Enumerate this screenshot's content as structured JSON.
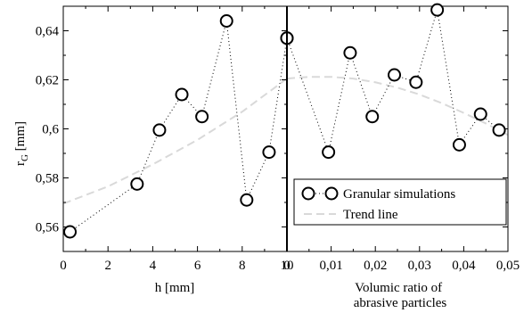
{
  "chart_data": [
    {
      "type": "scatter",
      "xlabel": "h [mm]",
      "ylabel_main": "r",
      "ylabel_sub": "G",
      "ylabel_unit": " [mm]",
      "xlim": [
        0,
        10
      ],
      "ylim": [
        0.55,
        0.65
      ],
      "xticks": [
        0,
        2,
        4,
        6,
        8,
        10
      ],
      "xtick_labels": [
        "0",
        "2",
        "4",
        "6",
        "8",
        "10"
      ],
      "yticks": [
        0.56,
        0.58,
        0.6,
        0.62,
        0.64
      ],
      "ytick_labels": [
        "0,56",
        "0,58",
        "0,6",
        "0,62",
        "0,64"
      ],
      "series": [
        {
          "name": "Granular simulations",
          "style": "dotted-line-with-circles",
          "x": [
            0.3,
            3.3,
            4.3,
            5.3,
            6.2,
            7.3,
            8.2,
            9.2,
            10.0
          ],
          "y": [
            0.558,
            0.5775,
            0.5995,
            0.614,
            0.605,
            0.644,
            0.571,
            0.5905,
            0.637
          ]
        },
        {
          "name": "Trend line",
          "style": "dashed",
          "x": [
            0,
            2,
            4,
            6,
            8,
            10
          ],
          "y": [
            0.5695,
            0.5765,
            0.5855,
            0.5955,
            0.607,
            0.6205
          ]
        }
      ]
    },
    {
      "type": "scatter",
      "xlabel_lines": [
        "Volumic ratio of",
        "abrasive particles"
      ],
      "xlim": [
        0,
        0.05
      ],
      "ylim": [
        0.55,
        0.65
      ],
      "xticks": [
        0,
        0.01,
        0.02,
        0.03,
        0.04,
        0.05
      ],
      "xtick_labels": [
        "0",
        "0,01",
        "0,02",
        "0,03",
        "0,04",
        "0,05"
      ],
      "legend": {
        "placement": "lower-right",
        "entries": [
          "Granular simulations",
          "Trend line"
        ]
      },
      "series": [
        {
          "name": "Granular simulations",
          "style": "dotted-line-with-circles",
          "x": [
            0.0,
            0.0094,
            0.0143,
            0.0193,
            0.0243,
            0.0292,
            0.034,
            0.039,
            0.0438,
            0.048
          ],
          "y": [
            0.637,
            0.5905,
            0.631,
            0.605,
            0.622,
            0.619,
            0.6485,
            0.5935,
            0.606,
            0.5995
          ]
        },
        {
          "name": "Trend line",
          "style": "dashed",
          "x": [
            0,
            0.005,
            0.01,
            0.015,
            0.02,
            0.025,
            0.03,
            0.035,
            0.04,
            0.045,
            0.05
          ],
          "y": [
            0.6205,
            0.6212,
            0.6212,
            0.6205,
            0.619,
            0.6168,
            0.614,
            0.6105,
            0.6065,
            0.6022,
            0.5975
          ]
        }
      ]
    }
  ]
}
